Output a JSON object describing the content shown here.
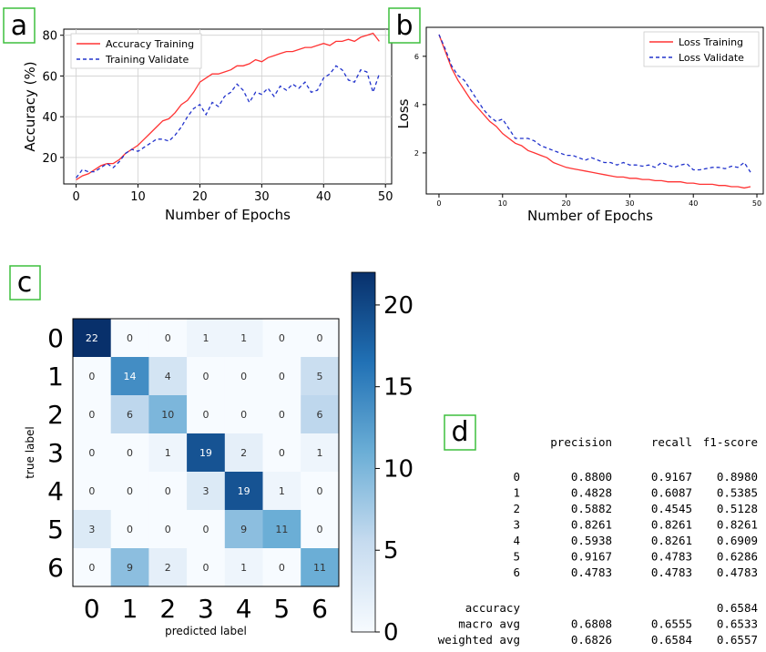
{
  "panels": {
    "a": "a",
    "b": "b",
    "c": "c",
    "d": "d"
  },
  "chart_data": [
    {
      "id": "accuracy",
      "type": "line",
      "title": "",
      "xlabel": "Number of Epochs",
      "ylabel": "Accuracy (%)",
      "xlim": [
        -2,
        51
      ],
      "ylim": [
        7,
        83
      ],
      "xticks": [
        0,
        10,
        20,
        30,
        40,
        50
      ],
      "yticks": [
        20,
        40,
        60,
        80
      ],
      "grid": true,
      "legend": "top-left",
      "x": [
        0,
        1,
        2,
        3,
        4,
        5,
        6,
        7,
        8,
        9,
        10,
        11,
        12,
        13,
        14,
        15,
        16,
        17,
        18,
        19,
        20,
        21,
        22,
        23,
        24,
        25,
        26,
        27,
        28,
        29,
        30,
        31,
        32,
        33,
        34,
        35,
        36,
        37,
        38,
        39,
        40,
        41,
        42,
        43,
        44,
        45,
        46,
        47,
        48,
        49
      ],
      "series": [
        {
          "name": "Accuracy Training",
          "color": "#ff3333",
          "dash": "solid",
          "values": [
            9,
            11,
            12,
            14,
            16,
            17,
            17,
            19,
            22,
            24,
            26,
            29,
            32,
            35,
            38,
            39,
            42,
            46,
            48,
            52,
            57,
            59,
            61,
            61,
            62,
            63,
            65,
            65,
            66,
            68,
            67,
            69,
            70,
            71,
            72,
            72,
            73,
            74,
            74,
            75,
            76,
            75,
            77,
            77,
            78,
            77,
            79,
            80,
            81,
            77
          ]
        },
        {
          "name": "Training Validate",
          "color": "#2233cc",
          "dash": "dashed",
          "values": [
            10,
            14,
            13,
            13,
            15,
            17,
            15,
            18,
            22,
            24,
            23,
            25,
            27,
            29,
            29,
            28,
            31,
            35,
            40,
            44,
            46,
            41,
            47,
            45,
            50,
            52,
            56,
            53,
            47,
            52,
            51,
            54,
            50,
            55,
            53,
            56,
            54,
            57,
            52,
            53,
            59,
            61,
            65,
            63,
            58,
            57,
            63,
            62,
            52,
            61
          ]
        }
      ]
    },
    {
      "id": "loss",
      "type": "line",
      "title": "",
      "xlabel": "Number of Epochs",
      "ylabel": "Loss",
      "xlim": [
        -2,
        51
      ],
      "ylim": [
        0.3,
        7.2
      ],
      "xticks": [
        0,
        10,
        20,
        30,
        40,
        50
      ],
      "yticks": [
        2,
        4,
        6
      ],
      "grid": false,
      "legend": "top-right",
      "x": [
        0,
        1,
        2,
        3,
        4,
        5,
        6,
        7,
        8,
        9,
        10,
        11,
        12,
        13,
        14,
        15,
        16,
        17,
        18,
        19,
        20,
        21,
        22,
        23,
        24,
        25,
        26,
        27,
        28,
        29,
        30,
        31,
        32,
        33,
        34,
        35,
        36,
        37,
        38,
        39,
        40,
        41,
        42,
        43,
        44,
        45,
        46,
        47,
        48,
        49
      ],
      "series": [
        {
          "name": "Loss Training",
          "color": "#ff3333",
          "dash": "solid",
          "values": [
            6.9,
            6.2,
            5.5,
            5.0,
            4.6,
            4.2,
            3.9,
            3.6,
            3.3,
            3.1,
            2.8,
            2.6,
            2.4,
            2.3,
            2.1,
            2.0,
            1.9,
            1.8,
            1.6,
            1.5,
            1.4,
            1.35,
            1.3,
            1.25,
            1.2,
            1.15,
            1.1,
            1.05,
            1.0,
            1.0,
            0.95,
            0.95,
            0.9,
            0.9,
            0.85,
            0.85,
            0.8,
            0.8,
            0.8,
            0.75,
            0.75,
            0.7,
            0.7,
            0.7,
            0.65,
            0.65,
            0.6,
            0.6,
            0.55,
            0.6
          ]
        },
        {
          "name": "Loss Validate",
          "color": "#2233cc",
          "dash": "dashed",
          "values": [
            6.9,
            6.3,
            5.6,
            5.2,
            5.0,
            4.6,
            4.2,
            3.8,
            3.5,
            3.3,
            3.4,
            3.0,
            2.6,
            2.6,
            2.6,
            2.5,
            2.3,
            2.2,
            2.1,
            2.0,
            1.9,
            1.9,
            1.8,
            1.7,
            1.8,
            1.7,
            1.6,
            1.6,
            1.5,
            1.6,
            1.5,
            1.5,
            1.45,
            1.5,
            1.4,
            1.6,
            1.5,
            1.4,
            1.5,
            1.55,
            1.3,
            1.3,
            1.35,
            1.4,
            1.4,
            1.35,
            1.45,
            1.4,
            1.6,
            1.2
          ]
        }
      ]
    },
    {
      "id": "confusion",
      "type": "heatmap",
      "title": "",
      "xlabel": "predicted label",
      "ylabel": "true label",
      "labels": [
        "0",
        "1",
        "2",
        "3",
        "4",
        "5",
        "6"
      ],
      "matrix": [
        [
          22,
          0,
          0,
          1,
          1,
          0,
          0
        ],
        [
          0,
          14,
          4,
          0,
          0,
          0,
          5
        ],
        [
          0,
          6,
          10,
          0,
          0,
          0,
          6
        ],
        [
          0,
          0,
          1,
          19,
          2,
          0,
          1
        ],
        [
          0,
          0,
          0,
          3,
          19,
          1,
          0
        ],
        [
          3,
          0,
          0,
          0,
          9,
          11,
          0
        ],
        [
          0,
          9,
          2,
          0,
          1,
          0,
          11
        ]
      ],
      "vmin": 0,
      "vmax": 22,
      "colorbar_ticks": [
        0,
        5,
        10,
        15,
        20
      ],
      "colormap": "Blues"
    },
    {
      "id": "report",
      "type": "table",
      "columns": [
        "precision",
        "recall",
        "f1-score"
      ],
      "rows": [
        {
          "label": "0",
          "values": [
            "0.8800",
            "0.9167",
            "0.8980"
          ]
        },
        {
          "label": "1",
          "values": [
            "0.4828",
            "0.6087",
            "0.5385"
          ]
        },
        {
          "label": "2",
          "values": [
            "0.5882",
            "0.4545",
            "0.5128"
          ]
        },
        {
          "label": "3",
          "values": [
            "0.8261",
            "0.8261",
            "0.8261"
          ]
        },
        {
          "label": "4",
          "values": [
            "0.5938",
            "0.8261",
            "0.6909"
          ]
        },
        {
          "label": "5",
          "values": [
            "0.9167",
            "0.4783",
            "0.6286"
          ]
        },
        {
          "label": "6",
          "values": [
            "0.4783",
            "0.4783",
            "0.4783"
          ]
        }
      ],
      "summary": [
        {
          "label": "accuracy",
          "values": [
            "",
            "",
            "0.6584"
          ]
        },
        {
          "label": "macro avg",
          "values": [
            "0.6808",
            "0.6555",
            "0.6533"
          ]
        },
        {
          "label": "weighted avg",
          "values": [
            "0.6826",
            "0.6584",
            "0.6557"
          ]
        }
      ]
    }
  ]
}
